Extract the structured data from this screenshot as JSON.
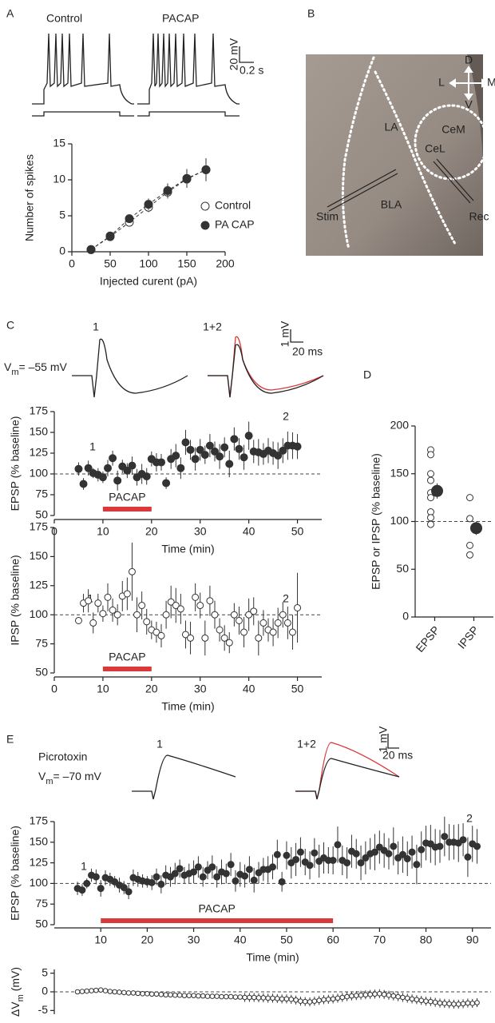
{
  "panels": [
    "A",
    "B",
    "C",
    "D",
    "E"
  ],
  "traces": {
    "a_labels": [
      "Control",
      "PACAP"
    ],
    "a_scale": [
      "20 mV",
      "0.2 s"
    ],
    "c_labels": [
      "1",
      "1+2"
    ],
    "c_vm": {
      "symbol": "V",
      "subscript": "m",
      "rest": "= –55 mV"
    },
    "c_scale": [
      "1 mV",
      "20 ms"
    ],
    "e_condition": "Picrotoxin",
    "e_vm": {
      "symbol": "V",
      "subscript": "m",
      "rest": "= –70 mV"
    },
    "e_labels": [
      "1",
      "1+2"
    ],
    "e_scale": [
      "1 mV",
      "20 ms"
    ]
  },
  "image": {
    "labels": [
      "LA",
      "CeM",
      "CeL",
      "BLA",
      "Stim",
      "Rec"
    ],
    "compass": [
      "D",
      "L",
      "M",
      "V"
    ]
  },
  "chart_data": [
    {
      "type": "scatter",
      "xlabel": "Injected curent (pA)",
      "ylabel": "Number of spikes",
      "x": [
        25,
        50,
        75,
        100,
        125,
        150,
        175
      ],
      "series": [
        {
          "name": "Control",
          "marker": "open",
          "color": "#333333",
          "values": [
            0.3,
            2.1,
            4.1,
            6.2,
            8.3,
            10.1,
            11.4
          ],
          "errors": [
            0.2,
            0.3,
            0.5,
            0.7,
            0.9,
            1.2,
            1.5
          ]
        },
        {
          "name": "PA CAP",
          "marker": "filled",
          "color": "#333333",
          "values": [
            0.3,
            2.2,
            4.6,
            6.6,
            8.5,
            10.2,
            11.4
          ],
          "errors": [
            0.2,
            0.3,
            0.6,
            0.8,
            1.0,
            1.3,
            1.6
          ]
        }
      ],
      "line": "dashed",
      "legend": "lower right",
      "xlim": [
        0,
        200
      ],
      "xticks": [
        0,
        50,
        100,
        150,
        200
      ],
      "ylim": [
        0,
        15
      ],
      "yticks": [
        0,
        5,
        10,
        15
      ]
    },
    {
      "type": "scatter",
      "xlabel": "Time (min)",
      "ylabel": "EPSP (% baseline)",
      "x": [
        5,
        6,
        7,
        8,
        9,
        10,
        11,
        12,
        13,
        14,
        15,
        16,
        17,
        18,
        19,
        20,
        21,
        22,
        23,
        24,
        25,
        26,
        27,
        28,
        29,
        30,
        31,
        32,
        33,
        34,
        35,
        36,
        37,
        38,
        39,
        40,
        41,
        42,
        43,
        44,
        45,
        46,
        47,
        48,
        49,
        50
      ],
      "series": [
        {
          "marker": "filled",
          "color": "#333333",
          "values": [
            106,
            88,
            107,
            101,
            99,
            96,
            107,
            119,
            92,
            109,
            104,
            110,
            96,
            100,
            97,
            118,
            114,
            114,
            89,
            118,
            122,
            107,
            138,
            129,
            118,
            129,
            123,
            134,
            127,
            121,
            132,
            112,
            142,
            130,
            120,
            146,
            127,
            126,
            124,
            128,
            125,
            122,
            128,
            134,
            134,
            133
          ],
          "errors": [
            8,
            7,
            9,
            6,
            8,
            7,
            10,
            9,
            12,
            8,
            9,
            11,
            10,
            12,
            10,
            9,
            11,
            10,
            7,
            12,
            14,
            13,
            15,
            12,
            14,
            13,
            11,
            14,
            12,
            15,
            12,
            16,
            14,
            13,
            15,
            17,
            14,
            16,
            13,
            15,
            14,
            16,
            15,
            17,
            16,
            15
          ]
        }
      ],
      "reference": 100,
      "treatment": {
        "label": "PACAP",
        "start": 10,
        "end": 20,
        "color": "#d9393a"
      },
      "annotations": [
        "1",
        "2"
      ],
      "xlim": [
        0,
        55
      ],
      "xticks": [
        0,
        10,
        20,
        30,
        40,
        50
      ],
      "ylim": [
        50,
        175
      ],
      "yticks": [
        50,
        75,
        100,
        125,
        150,
        175
      ]
    },
    {
      "type": "scatter",
      "xlabel": "Time (min)",
      "ylabel": "IPSP (% baseline)",
      "x": [
        5,
        6,
        7,
        8,
        9,
        10,
        11,
        12,
        13,
        14,
        15,
        16,
        17,
        18,
        19,
        20,
        21,
        22,
        23,
        24,
        25,
        26,
        27,
        28,
        29,
        30,
        31,
        32,
        33,
        34,
        35,
        36,
        37,
        38,
        39,
        40,
        41,
        42,
        43,
        44,
        45,
        46,
        47,
        48,
        49,
        50
      ],
      "series": [
        {
          "marker": "open",
          "color": "#333333",
          "values": [
            95,
            110,
            112,
            93,
            110,
            101,
            115,
            104,
            100,
            116,
            118,
            137,
            100,
            108,
            94,
            87,
            85,
            82,
            100,
            111,
            108,
            105,
            83,
            80,
            115,
            108,
            80,
            112,
            100,
            87,
            80,
            76,
            100,
            95,
            85,
            100,
            103,
            80,
            93,
            87,
            85,
            93,
            100,
            93,
            85,
            106
          ],
          "errors": [
            3,
            8,
            10,
            9,
            8,
            7,
            12,
            10,
            9,
            13,
            14,
            25,
            15,
            12,
            11,
            8,
            9,
            10,
            12,
            14,
            15,
            13,
            12,
            14,
            12,
            11,
            15,
            13,
            12,
            10,
            11,
            9,
            10,
            12,
            13,
            14,
            12,
            15,
            11,
            10,
            12,
            13,
            11,
            14,
            15,
            30
          ]
        }
      ],
      "reference": 100,
      "treatment": {
        "label": "PACAP",
        "start": 10,
        "end": 20,
        "color": "#d9393a"
      },
      "annotations": [
        "1",
        "2"
      ],
      "xlim": [
        0,
        55
      ],
      "xticks": [
        0,
        10,
        20,
        30,
        40,
        50
      ],
      "ylim": [
        50,
        175
      ],
      "yticks": [
        50,
        75,
        100,
        125,
        150,
        175
      ]
    },
    {
      "type": "strip",
      "ylabel": "EPSP or IPSP (% baseline)",
      "categories": [
        "EPSP",
        "IPSP"
      ],
      "points": [
        [
          175,
          170,
          150,
          143,
          130,
          125,
          110,
          104,
          97
        ],
        [
          125,
          103,
          75,
          65
        ]
      ],
      "means": [
        132,
        93
      ],
      "errors": [
        8,
        7
      ],
      "reference": 100,
      "ylim": [
        0,
        200
      ],
      "yticks": [
        0,
        50,
        100,
        150,
        200
      ]
    },
    {
      "type": "scatter",
      "xlabel": "Time (min)",
      "ylabel": "EPSP (% baseline)",
      "x": [
        5,
        6,
        7,
        8,
        9,
        10,
        11,
        12,
        13,
        14,
        15,
        16,
        17,
        18,
        19,
        20,
        21,
        22,
        23,
        24,
        25,
        26,
        27,
        28,
        29,
        30,
        31,
        32,
        33,
        34,
        35,
        36,
        37,
        38,
        39,
        40,
        41,
        42,
        43,
        44,
        45,
        46,
        47,
        48,
        49,
        50,
        51,
        52,
        53,
        54,
        55,
        56,
        57,
        58,
        59,
        60,
        61,
        62,
        63,
        64,
        65,
        66,
        67,
        68,
        69,
        70,
        71,
        72,
        73,
        74,
        75,
        76,
        77,
        78,
        79,
        80,
        81,
        82,
        83,
        84,
        85,
        86,
        87,
        88,
        89,
        90,
        91
      ],
      "series": [
        {
          "marker": "filled",
          "color": "#333333",
          "values": [
            94,
            92,
            100,
            110,
            108,
            94,
            107,
            105,
            102,
            98,
            95,
            90,
            107,
            105,
            103,
            102,
            101,
            108,
            99,
            110,
            108,
            112,
            118,
            110,
            112,
            114,
            120,
            108,
            116,
            120,
            108,
            114,
            112,
            123,
            103,
            111,
            109,
            117,
            104,
            113,
            117,
            117,
            120,
            135,
            102,
            134,
            125,
            129,
            138,
            126,
            122,
            137,
            127,
            131,
            128,
            128,
            147,
            128,
            125,
            139,
            136,
            125,
            131,
            136,
            138,
            144,
            140,
            136,
            145,
            131,
            135,
            130,
            138,
            123,
            141,
            149,
            148,
            144,
            145,
            157,
            150,
            150,
            149,
            153,
            132,
            148,
            145
          ],
          "errors": [
            8,
            7,
            6,
            8,
            9,
            10,
            9,
            8,
            7,
            9,
            8,
            9,
            10,
            9,
            8,
            7,
            9,
            10,
            11,
            12,
            12,
            13,
            11,
            10,
            12,
            14,
            13,
            12,
            11,
            14,
            13,
            15,
            12,
            14,
            13,
            15,
            14,
            16,
            15,
            13,
            14,
            16,
            15,
            18,
            12,
            17,
            19,
            20,
            18,
            16,
            17,
            18,
            20,
            19,
            16,
            17,
            22,
            18,
            19,
            20,
            18,
            21,
            20,
            19,
            22,
            20,
            21,
            19,
            23,
            20,
            22,
            21,
            20,
            24,
            22,
            21,
            23,
            22,
            20,
            24,
            22,
            21,
            23,
            20,
            24,
            22,
            21
          ]
        }
      ],
      "reference": 100,
      "treatment": {
        "label": "PACAP",
        "start": 10,
        "end": 60,
        "color": "#d9393a"
      },
      "annotations": [
        "1",
        "2"
      ],
      "xlim": [
        0,
        94
      ],
      "xticks": [
        10,
        20,
        30,
        40,
        50,
        60,
        70,
        80,
        90
      ],
      "ylim": [
        50,
        175
      ],
      "yticks": [
        50,
        75,
        100,
        125,
        150,
        175
      ]
    },
    {
      "type": "scatter",
      "ylabel": {
        "symbol": "ΔV",
        "subscript": "m",
        "rest": " (mV)"
      },
      "x": [
        5,
        6,
        7,
        8,
        9,
        10,
        11,
        12,
        13,
        14,
        15,
        16,
        17,
        18,
        19,
        20,
        21,
        22,
        23,
        24,
        25,
        26,
        27,
        28,
        29,
        30,
        31,
        32,
        33,
        34,
        35,
        36,
        37,
        38,
        39,
        40,
        41,
        42,
        43,
        44,
        45,
        46,
        47,
        48,
        49,
        50,
        51,
        52,
        53,
        54,
        55,
        56,
        57,
        58,
        59,
        60,
        61,
        62,
        63,
        64,
        65,
        66,
        67,
        68,
        69,
        70,
        71,
        72,
        73,
        74,
        75,
        76,
        77,
        78,
        79,
        80,
        81,
        82,
        83,
        84,
        85,
        86,
        87,
        88,
        89,
        90,
        91
      ],
      "series": [
        {
          "marker": "open",
          "color": "#333333",
          "values": [
            0,
            0.1,
            0.2,
            0.3,
            0.4,
            0.5,
            0.3,
            0.1,
            0,
            -0.1,
            -0.2,
            -0.3,
            -0.3,
            -0.4,
            -0.5,
            -0.5,
            -0.6,
            -0.6,
            -0.7,
            -0.8,
            -0.8,
            -0.9,
            -0.9,
            -1,
            -1,
            -1,
            -1.1,
            -1.1,
            -1.2,
            -1.2,
            -1.2,
            -1.3,
            -1.3,
            -1.3,
            -1.4,
            -1.4,
            -1.5,
            -1.5,
            -1.5,
            -1.6,
            -1.6,
            -1.7,
            -1.7,
            -1.8,
            -1.9,
            -1.9,
            -2,
            -2.2,
            -2.5,
            -2.6,
            -2.7,
            -2.5,
            -2.3,
            -2.1,
            -2,
            -1.9,
            -1.7,
            -1.5,
            -1.3,
            -1.1,
            -1,
            -0.9,
            -0.8,
            -0.7,
            -0.6,
            -0.5,
            -0.7,
            -0.9,
            -1.1,
            -1.3,
            -1.5,
            -1.7,
            -1.9,
            -2.1,
            -2.3,
            -2.5,
            -2.6,
            -2.8,
            -3,
            -3.1,
            -3.2,
            -3.3,
            -3.3,
            -3.2,
            -3,
            -3.1,
            -2.9
          ],
          "errors": [
            0.3,
            0.3,
            0.3,
            0.3,
            0.3,
            0.3,
            0.3,
            0.3,
            0.3,
            0.3,
            0.3,
            0.3,
            0.3,
            0.3,
            0.3,
            0.3,
            0.3,
            0.3,
            0.3,
            0.3,
            0.3,
            0.3,
            0.3,
            0.3,
            0.3,
            0.3,
            0.3,
            0.3,
            0.3,
            0.3,
            0.3,
            0.3,
            0.3,
            0.3,
            0.3,
            0.3,
            1.2,
            1.2,
            1.2,
            1.2,
            1.2,
            1.2,
            1.2,
            1.2,
            1.2,
            1.2,
            1.2,
            1.2,
            1.2,
            1.2,
            1.2,
            1.2,
            1.2,
            1.2,
            1.2,
            1.2,
            1.2,
            1.2,
            1.2,
            1.2,
            1.2,
            1.2,
            1.2,
            1.2,
            1.2,
            1.2,
            1.2,
            1.2,
            1.2,
            1.2,
            1.2,
            1.2,
            1.2,
            1.2,
            1.2,
            1.2,
            1.2,
            1.2,
            1.2,
            1.2,
            1.2,
            1.2,
            1.2,
            1.2,
            1.2,
            1.2,
            1.2
          ]
        }
      ],
      "reference": 0,
      "xlim": [
        0,
        94
      ],
      "ylim": [
        -6,
        6
      ],
      "yticks": [
        -5,
        0,
        5
      ]
    }
  ]
}
